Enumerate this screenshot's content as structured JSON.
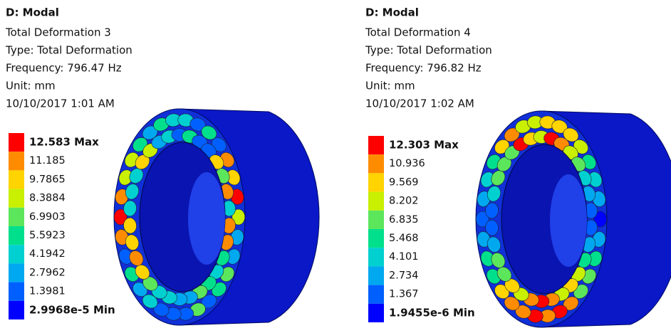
{
  "panels": [
    {
      "title": "D: Modal",
      "lines": [
        "Total Deformation 3",
        "Type: Total Deformation",
        "Frequency: 796.47 Hz",
        "Unit: mm",
        "10/10/2017 1:01 AM"
      ],
      "legend": [
        "12.583 Max",
        "11.185",
        "9.7865",
        "8.3884",
        "6.9903",
        "5.5923",
        "4.1942",
        "2.7962",
        "1.3981",
        "2.9968e-5 Min"
      ]
    },
    {
      "title": "D: Modal",
      "lines": [
        "Total Deformation 4",
        "Type: Total Deformation",
        "Frequency: 796.82 Hz",
        "Unit: mm",
        "10/10/2017 1:02 AM"
      ],
      "legend": [
        "12.303 Max",
        "10.936",
        "9.569",
        "8.202",
        "6.835",
        "5.468",
        "4.101",
        "2.734",
        "1.367",
        "1.9455e-6 Min"
      ]
    }
  ]
}
